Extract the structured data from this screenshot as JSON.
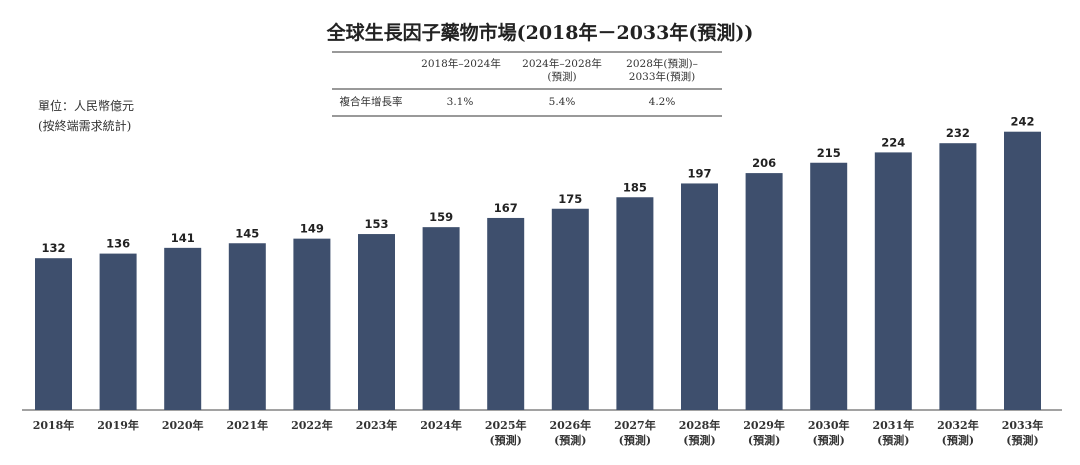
{
  "chart_data": {
    "type": "bar",
    "title": "全球生長因子藥物市場(2018年－2033年(預測))",
    "unit_note": [
      "單位：人民幣億元",
      "(按終端需求統計)"
    ],
    "table": {
      "columns": [
        "2018年–2024年",
        "2024年–2028年\n(預測)",
        "2028年(預測)–\n2033年(預測)"
      ],
      "rows": [
        [
          "複合年增長率",
          "3.1%",
          "5.4%",
          "4.2%"
        ]
      ]
    },
    "categories": [
      "2018年",
      "2019年",
      "2020年",
      "2021年",
      "2022年",
      "2023年",
      "2024年",
      "2025年\n(預測)",
      "2026年\n(預測)",
      "2027年\n(預測)",
      "2028年\n(預測)",
      "2029年\n(預測)",
      "2030年\n(預測)",
      "2031年\n(預測)",
      "2032年\n(預測)",
      "2033年\n(預測)"
    ],
    "values": [
      132,
      136,
      141,
      145,
      149,
      153,
      159,
      167,
      175,
      185,
      197,
      206,
      215,
      224,
      232,
      242
    ],
    "color": "#3e4f6d",
    "ylim": [
      0,
      250
    ]
  }
}
